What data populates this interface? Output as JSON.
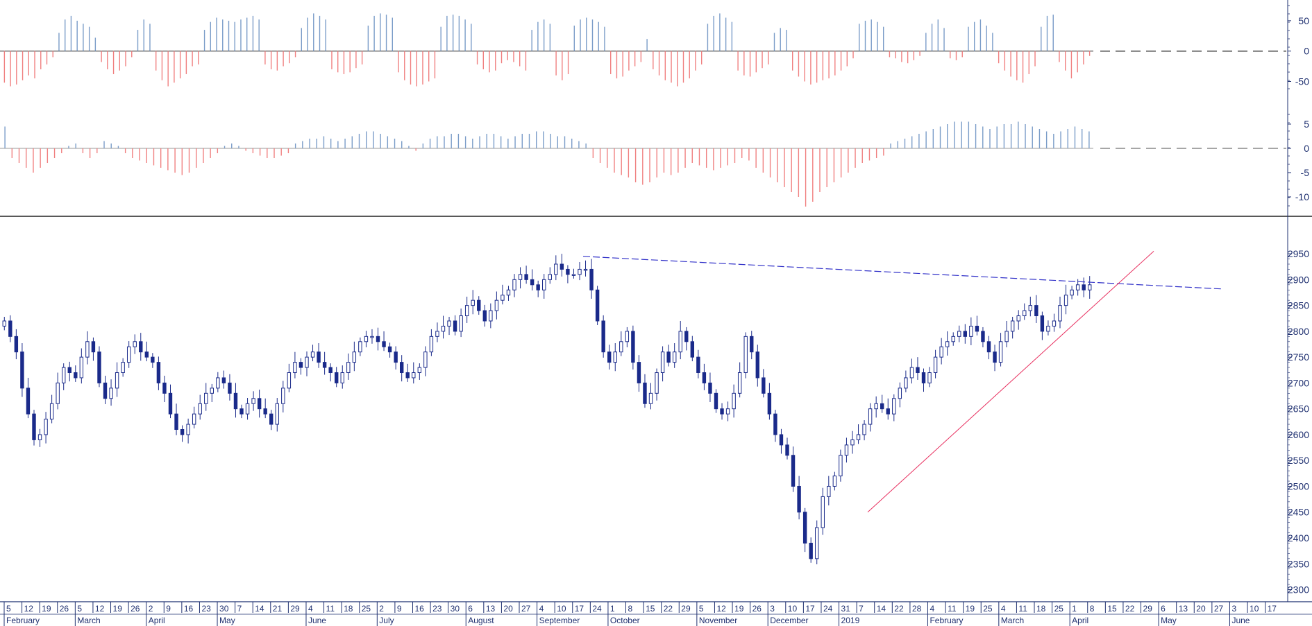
{
  "chart_data": [
    {
      "type": "bar",
      "panel": "top-oscillator",
      "y_ticks": [
        "50",
        "0",
        "-50"
      ],
      "ylim": [
        -70,
        75
      ],
      "colors": {
        "positive": "#7a9cc8",
        "negative": "#f08080",
        "zero_line": "#222222"
      },
      "values": [
        -52,
        -58,
        -55,
        -48,
        -40,
        -45,
        -30,
        -22,
        -10,
        30,
        52,
        58,
        50,
        45,
        40,
        22,
        -18,
        -30,
        -38,
        -32,
        -25,
        -10,
        35,
        52,
        45,
        -32,
        -48,
        -58,
        -52,
        -45,
        -38,
        -25,
        -22,
        35,
        48,
        55,
        52,
        50,
        48,
        52,
        55,
        58,
        52,
        -22,
        -30,
        -32,
        -25,
        -20,
        -10,
        38,
        55,
        62,
        58,
        52,
        -30,
        -35,
        -38,
        -35,
        -28,
        -22,
        42,
        58,
        62,
        60,
        55,
        -35,
        -48,
        -55,
        -58,
        -55,
        -50,
        -45,
        40,
        58,
        60,
        58,
        52,
        45,
        -22,
        -30,
        -35,
        -32,
        -20,
        -15,
        -18,
        -25,
        -32,
        35,
        48,
        52,
        45,
        -40,
        -48,
        -38,
        42,
        52,
        55,
        52,
        48,
        40,
        -38,
        -45,
        -42,
        -32,
        -25,
        -18,
        20,
        -30,
        -40,
        -48,
        -52,
        -58,
        -52,
        -45,
        -32,
        -22,
        45,
        58,
        62,
        55,
        48,
        -32,
        -40,
        -42,
        -35,
        -28,
        -22,
        30,
        38,
        35,
        -32,
        -42,
        -50,
        -55,
        -52,
        -48,
        -45,
        -40,
        -32,
        -25,
        -12,
        45,
        50,
        52,
        48,
        40,
        -10,
        -12,
        -18,
        -20,
        -15,
        -8,
        30,
        45,
        52,
        38,
        -12,
        -15,
        -10,
        40,
        48,
        52,
        42,
        30,
        -20,
        -32,
        -42,
        -48,
        -52,
        -38,
        -25,
        40,
        58,
        60,
        -18,
        -32,
        -45,
        -35,
        -22,
        -8
      ],
      "series_name": ""
    },
    {
      "type": "bar",
      "panel": "middle-oscillator",
      "y_ticks": [
        "5",
        "0",
        "-5",
        "-10"
      ],
      "ylim": [
        -13,
        7
      ],
      "colors": {
        "positive": "#7a9cc8",
        "negative": "#f08080",
        "zero_line": "#999999"
      },
      "values": [
        4.5,
        -2,
        -3,
        -4,
        -5,
        -4,
        -3,
        -2,
        -1,
        0.5,
        1,
        -1,
        -2,
        -1,
        1.5,
        1,
        0.5,
        -1,
        -2,
        -2.5,
        -3,
        -3.5,
        -4,
        -4.5,
        -5,
        -5.5,
        -5,
        -4,
        -3,
        -2,
        -1,
        0.5,
        1,
        0.5,
        -0.5,
        -1,
        -1.5,
        -2,
        -2,
        -1.5,
        -1,
        1,
        1.5,
        2,
        2,
        2.5,
        2,
        1.5,
        2,
        2.5,
        3,
        3.5,
        3.5,
        3,
        2.5,
        2,
        1.5,
        0.5,
        -0.5,
        1,
        2,
        2.5,
        2.5,
        3,
        3,
        2.5,
        2,
        2.5,
        3,
        3,
        2.5,
        2,
        2.5,
        3,
        3,
        3.5,
        3.5,
        3,
        2.5,
        2.5,
        2,
        1.5,
        1,
        -2,
        -3,
        -4,
        -5,
        -5.5,
        -6,
        -7,
        -7.5,
        -7,
        -6,
        -5,
        -5.5,
        -5,
        -4,
        -3,
        -3.5,
        -4,
        -4.5,
        -4,
        -3.5,
        -3,
        -2,
        -2.5,
        -4,
        -5,
        -6,
        -7,
        -8,
        -9,
        -10,
        -12,
        -11,
        -9,
        -8,
        -7,
        -6,
        -5,
        -4,
        -3,
        -2.5,
        -2,
        -1.5,
        1,
        1.5,
        2,
        2.5,
        3,
        3.5,
        4,
        4.5,
        5,
        5.5,
        5.5,
        5.5,
        5,
        4.5,
        4,
        4.5,
        5,
        5,
        5.5,
        5,
        4.5,
        4,
        3.5,
        3,
        3.5,
        4,
        4.5,
        4,
        3.5
      ],
      "series_name": ""
    },
    {
      "type": "candlestick",
      "panel": "price",
      "y_ticks": [
        "2950",
        "2900",
        "2850",
        "2800",
        "2750",
        "2700",
        "2650",
        "2600",
        "2550",
        "2500",
        "2450",
        "2400",
        "2350",
        "2300"
      ],
      "ylim": [
        2290,
        2985
      ],
      "colors": {
        "up": "#ffffff",
        "down": "#1a2a8a",
        "wick": "#1a2a8a",
        "resistance": "#3030c8",
        "support": "#e83060"
      },
      "ohlc_close": [
        2820,
        2790,
        2760,
        2690,
        2640,
        2590,
        2600,
        2630,
        2660,
        2700,
        2730,
        2720,
        2710,
        2750,
        2780,
        2760,
        2700,
        2670,
        2690,
        2720,
        2740,
        2770,
        2780,
        2760,
        2750,
        2740,
        2700,
        2680,
        2640,
        2610,
        2600,
        2620,
        2640,
        2660,
        2680,
        2690,
        2710,
        2700,
        2680,
        2650,
        2640,
        2660,
        2670,
        2650,
        2640,
        2620,
        2660,
        2690,
        2720,
        2740,
        2730,
        2750,
        2760,
        2740,
        2730,
        2720,
        2700,
        2720,
        2740,
        2760,
        2780,
        2790,
        2790,
        2780,
        2770,
        2760,
        2740,
        2720,
        2710,
        2720,
        2730,
        2760,
        2790,
        2800,
        2810,
        2820,
        2800,
        2830,
        2850,
        2860,
        2840,
        2820,
        2840,
        2860,
        2870,
        2880,
        2900,
        2910,
        2900,
        2890,
        2880,
        2900,
        2910,
        2930,
        2920,
        2910,
        2910,
        2920,
        2920,
        2880,
        2820,
        2760,
        2740,
        2760,
        2780,
        2800,
        2740,
        2700,
        2660,
        2680,
        2720,
        2760,
        2740,
        2760,
        2800,
        2780,
        2750,
        2720,
        2700,
        2680,
        2650,
        2640,
        2650,
        2680,
        2720,
        2790,
        2760,
        2710,
        2680,
        2640,
        2600,
        2580,
        2560,
        2500,
        2450,
        2390,
        2360,
        2420,
        2480,
        2500,
        2520,
        2560,
        2580,
        2590,
        2600,
        2620,
        2650,
        2660,
        2650,
        2640,
        2670,
        2690,
        2710,
        2730,
        2720,
        2700,
        2720,
        2750,
        2770,
        2780,
        2790,
        2800,
        2790,
        2810,
        2800,
        2780,
        2760,
        2740,
        2780,
        2800,
        2820,
        2830,
        2840,
        2850,
        2830,
        2800,
        2810,
        2820,
        2850,
        2870,
        2880,
        2890,
        2880,
        2890
      ],
      "resistance_line": {
        "start_value": 2945,
        "end_value": 2882
      },
      "support_line": {
        "start_value": 2450,
        "end_value": 2955
      }
    },
    {
      "type": "axis",
      "panel": "time-axis",
      "date_ticks": [
        "5",
        "12",
        "19",
        "26",
        "5",
        "12",
        "19",
        "26",
        "2",
        "9",
        "16",
        "23",
        "30",
        "7",
        "14",
        "21",
        "29",
        "4",
        "11",
        "18",
        "25",
        "2",
        "9",
        "16",
        "23",
        "30",
        "6",
        "13",
        "20",
        "27",
        "4",
        "10",
        "17",
        "24",
        "1",
        "8",
        "15",
        "22",
        "29",
        "5",
        "12",
        "19",
        "26",
        "3",
        "10",
        "17",
        "24",
        "31",
        "7",
        "14",
        "22",
        "28",
        "4",
        "11",
        "19",
        "25",
        "4",
        "11",
        "18",
        "25",
        "1",
        "8",
        "15",
        "22",
        "29",
        "6",
        "13",
        "20",
        "27",
        "3",
        "10",
        "17"
      ],
      "month_labels": [
        "February",
        "March",
        "April",
        "May",
        "June",
        "July",
        "August",
        "September",
        "October",
        "November",
        "December",
        "2019",
        "February",
        "March",
        "April",
        "May",
        "June"
      ]
    }
  ]
}
